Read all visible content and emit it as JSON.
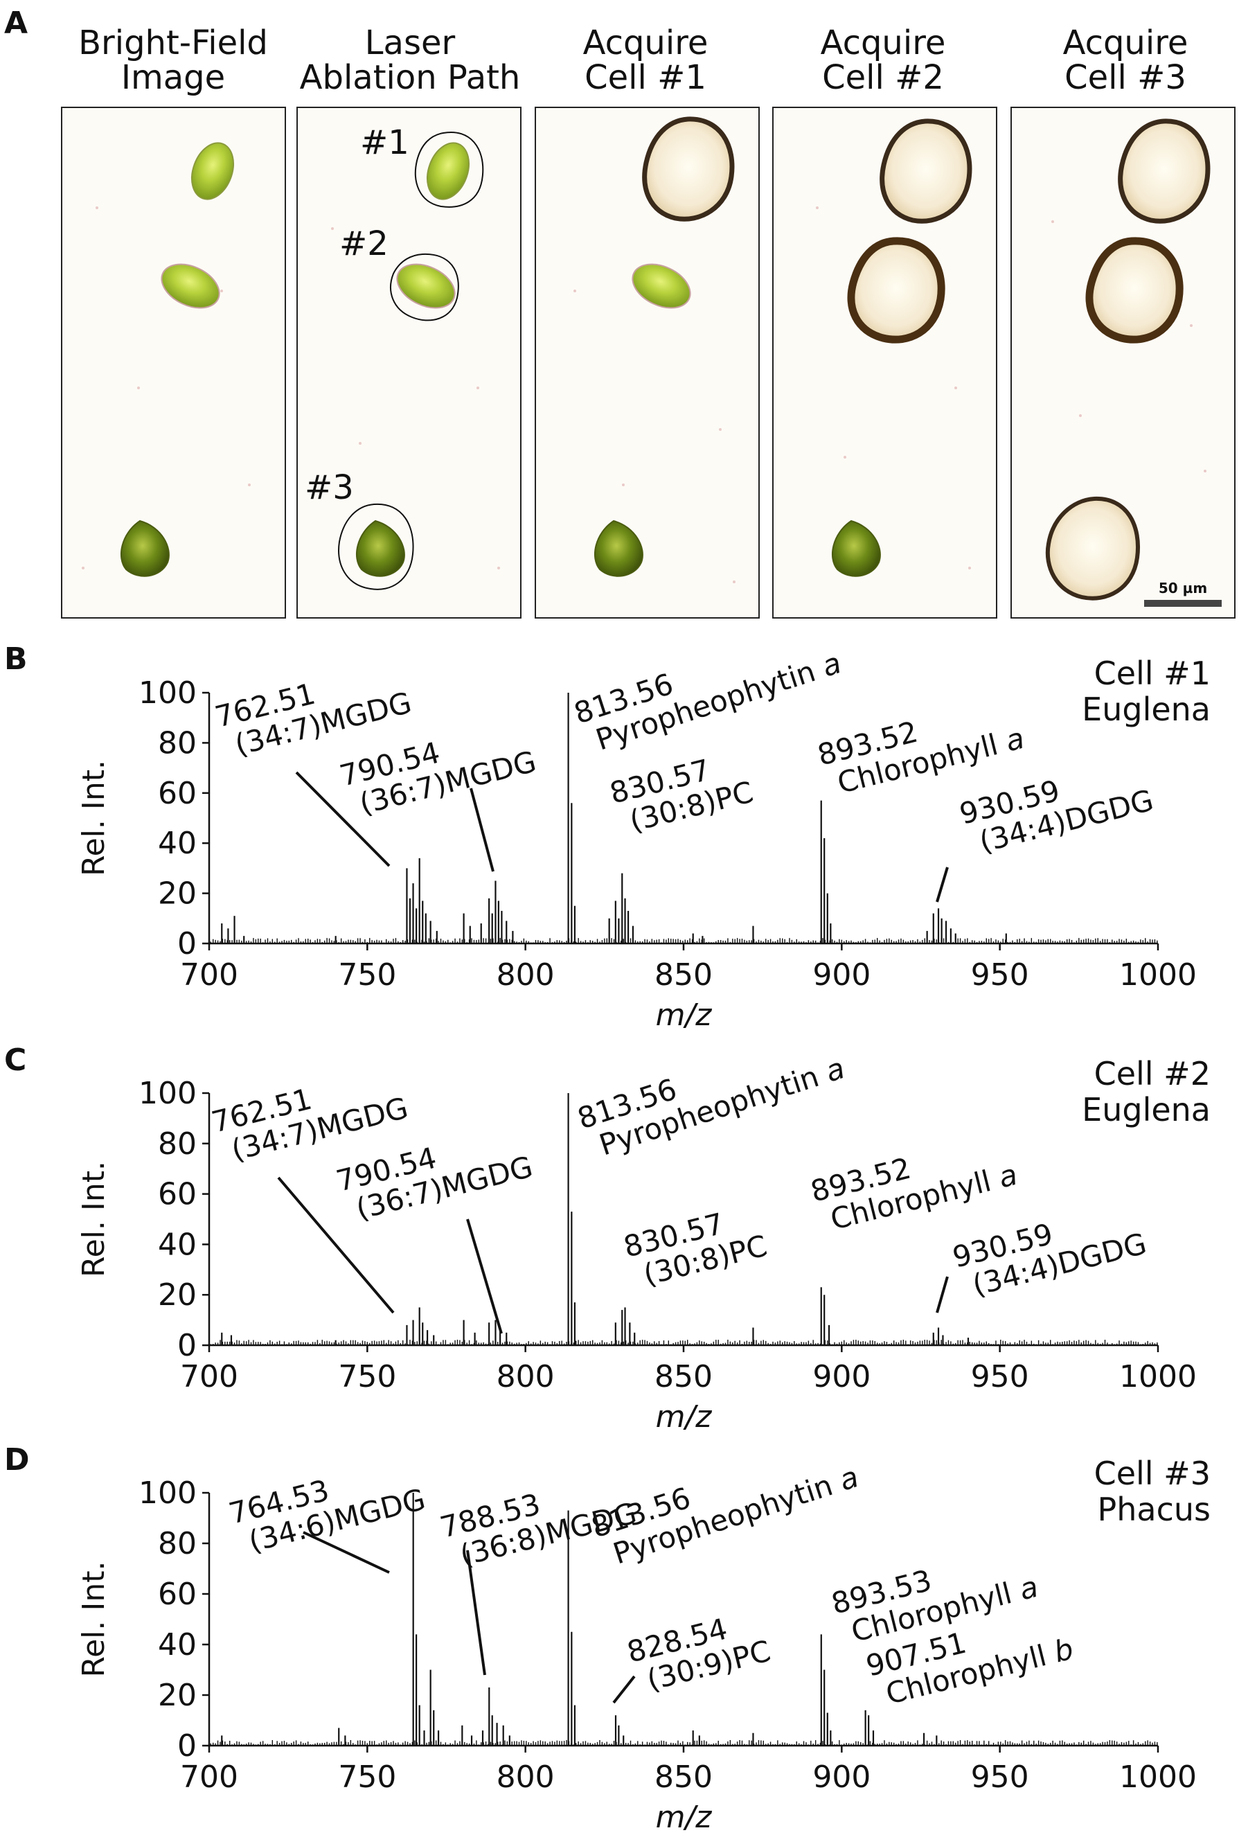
{
  "figure": {
    "panel_a": {
      "letter": "A",
      "scale_bar": "50 µm",
      "columns": [
        {
          "title1": "Bright-Field",
          "title2": "Image"
        },
        {
          "title1": "Laser",
          "title2": "Ablation Path",
          "labels": [
            "#1",
            "#2",
            "#3"
          ]
        },
        {
          "title1": "Acquire",
          "title2": "Cell #1"
        },
        {
          "title1": "Acquire",
          "title2": "Cell #2"
        },
        {
          "title1": "Acquire",
          "title2": "Cell #3"
        }
      ]
    }
  },
  "chart_data": [
    {
      "panel": "B",
      "type": "bar",
      "title": "Cell #1",
      "subtitle": "Euglena",
      "xlabel": "m/z",
      "ylabel": "Rel. Int.",
      "xlim": [
        700,
        1000
      ],
      "ylim": [
        0,
        100
      ],
      "xticks": [
        700,
        750,
        800,
        850,
        900,
        950,
        1000
      ],
      "yticks": [
        0,
        20,
        40,
        60,
        80,
        100
      ],
      "peaks": [
        [
          704,
          8
        ],
        [
          706,
          6
        ],
        [
          708,
          11
        ],
        [
          711,
          3
        ],
        [
          740,
          3
        ],
        [
          762.51,
          30
        ],
        [
          763.5,
          18
        ],
        [
          764.5,
          24
        ],
        [
          765.5,
          14
        ],
        [
          766.5,
          34
        ],
        [
          767.5,
          17
        ],
        [
          768.5,
          12
        ],
        [
          770,
          9
        ],
        [
          772,
          5
        ],
        [
          780.5,
          12
        ],
        [
          782.5,
          7
        ],
        [
          786,
          8
        ],
        [
          788.5,
          18
        ],
        [
          789.5,
          12
        ],
        [
          790.54,
          25
        ],
        [
          791.5,
          17
        ],
        [
          792.5,
          13
        ],
        [
          794,
          9
        ],
        [
          796,
          5
        ],
        [
          813.56,
          100
        ],
        [
          814.6,
          56
        ],
        [
          815.6,
          15
        ],
        [
          826.5,
          10
        ],
        [
          828.5,
          17
        ],
        [
          829.5,
          10
        ],
        [
          830.57,
          28
        ],
        [
          831.5,
          18
        ],
        [
          832.5,
          13
        ],
        [
          834,
          7
        ],
        [
          853,
          4
        ],
        [
          856,
          3
        ],
        [
          872,
          7
        ],
        [
          893.52,
          57
        ],
        [
          894.5,
          42
        ],
        [
          895.5,
          20
        ],
        [
          896.5,
          8
        ],
        [
          927,
          5
        ],
        [
          929,
          12
        ],
        [
          930.59,
          14
        ],
        [
          931.6,
          10
        ],
        [
          933,
          9
        ],
        [
          934.5,
          6
        ],
        [
          936,
          4
        ],
        [
          952,
          4
        ]
      ],
      "annotations": [
        {
          "line1": "762.51",
          "line2": "(34:7)MGDG"
        },
        {
          "line1": "790.54",
          "line2": "(36:7)MGDG"
        },
        {
          "line1": "813.56",
          "line2": "Pyropheophytin a"
        },
        {
          "line1": "830.57",
          "line2": "(30:8)PC"
        },
        {
          "line1": "893.52",
          "line2": "Chlorophyll a"
        },
        {
          "line1": "930.59",
          "line2": "(34:4)DGDG"
        }
      ]
    },
    {
      "panel": "C",
      "type": "bar",
      "title": "Cell #2",
      "subtitle": "Euglena",
      "xlabel": "m/z",
      "ylabel": "Rel. Int.",
      "xlim": [
        700,
        1000
      ],
      "ylim": [
        0,
        100
      ],
      "xticks": [
        700,
        750,
        800,
        850,
        900,
        950,
        1000
      ],
      "yticks": [
        0,
        20,
        40,
        60,
        80,
        100
      ],
      "peaks": [
        [
          704,
          5
        ],
        [
          707,
          4
        ],
        [
          740,
          2
        ],
        [
          762.51,
          8
        ],
        [
          764.5,
          10
        ],
        [
          766.5,
          15
        ],
        [
          767.5,
          9
        ],
        [
          769,
          6
        ],
        [
          771,
          4
        ],
        [
          780.5,
          10
        ],
        [
          784,
          5
        ],
        [
          788.5,
          9
        ],
        [
          790.54,
          10
        ],
        [
          792,
          7
        ],
        [
          794,
          5
        ],
        [
          813.56,
          100
        ],
        [
          814.6,
          53
        ],
        [
          815.6,
          17
        ],
        [
          828.5,
          9
        ],
        [
          830.57,
          14
        ],
        [
          831.5,
          15
        ],
        [
          833,
          9
        ],
        [
          834.5,
          5
        ],
        [
          872,
          7
        ],
        [
          893.52,
          23
        ],
        [
          894.5,
          20
        ],
        [
          896,
          8
        ],
        [
          929,
          5
        ],
        [
          930.59,
          7
        ],
        [
          932,
          4
        ],
        [
          940,
          3
        ]
      ],
      "annotations": [
        {
          "line1": "762.51",
          "line2": "(34:7)MGDG"
        },
        {
          "line1": "790.54",
          "line2": "(36:7)MGDG"
        },
        {
          "line1": "813.56",
          "line2": "Pyropheophytin a"
        },
        {
          "line1": "830.57",
          "line2": "(30:8)PC"
        },
        {
          "line1": "893.52",
          "line2": "Chlorophyll a"
        },
        {
          "line1": "930.59",
          "line2": "(34:4)DGDG"
        }
      ]
    },
    {
      "panel": "D",
      "type": "bar",
      "title": "Cell #3",
      "subtitle": "Phacus",
      "xlabel": "m/z",
      "ylabel": "Rel. Int.",
      "xlim": [
        700,
        1000
      ],
      "ylim": [
        0,
        100
      ],
      "xticks": [
        700,
        750,
        800,
        850,
        900,
        950,
        1000
      ],
      "yticks": [
        0,
        20,
        40,
        60,
        80,
        100
      ],
      "peaks": [
        [
          704,
          4
        ],
        [
          741,
          7
        ],
        [
          743,
          4
        ],
        [
          764.53,
          100
        ],
        [
          765.5,
          44
        ],
        [
          766.5,
          16
        ],
        [
          768,
          6
        ],
        [
          770,
          30
        ],
        [
          771,
          14
        ],
        [
          772.5,
          6
        ],
        [
          780,
          8
        ],
        [
          783,
          4
        ],
        [
          786.5,
          6
        ],
        [
          788.53,
          23
        ],
        [
          789.5,
          12
        ],
        [
          791,
          9
        ],
        [
          793,
          8
        ],
        [
          795,
          4
        ],
        [
          813.56,
          93
        ],
        [
          814.6,
          45
        ],
        [
          815.6,
          16
        ],
        [
          828.54,
          12
        ],
        [
          829.5,
          8
        ],
        [
          831,
          4
        ],
        [
          853,
          6
        ],
        [
          855,
          4
        ],
        [
          872,
          5
        ],
        [
          893.53,
          44
        ],
        [
          894.5,
          30
        ],
        [
          895.5,
          13
        ],
        [
          896.5,
          6
        ],
        [
          907.51,
          14
        ],
        [
          908.5,
          12
        ],
        [
          910,
          6
        ],
        [
          926,
          5
        ],
        [
          930,
          4
        ]
      ],
      "annotations": [
        {
          "line1": "764.53",
          "line2": "(34:6)MGDG"
        },
        {
          "line1": "788.53",
          "line2": "(36:8)MGDG"
        },
        {
          "line1": "813.56",
          "line2": "Pyropheophytin a"
        },
        {
          "line1": "828.54",
          "line2": "(30:9)PC"
        },
        {
          "line1": "893.53",
          "line2": "Chlorophyll a"
        },
        {
          "line1": "907.51",
          "line2": "Chlorophyll b"
        }
      ]
    }
  ]
}
